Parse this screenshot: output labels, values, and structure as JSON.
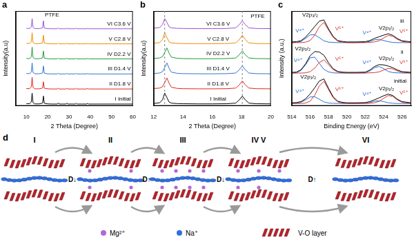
{
  "chart_data": [
    {
      "panel": "a",
      "type": "line",
      "x_label": "2 Theta (Degree)",
      "y_label": "Intensity(a.u)",
      "x": [
        10,
        11.5,
        12.3,
        12.7,
        13.1,
        14,
        16,
        17.6,
        18,
        18.4,
        20,
        22,
        24.6,
        25,
        25.4,
        27,
        28.6,
        29,
        29.4,
        31,
        33,
        33.4,
        33.8,
        36,
        38.4,
        38.8,
        39.2,
        42,
        45,
        50,
        55,
        60
      ],
      "xlim": [
        5,
        60
      ],
      "xticks": [
        10,
        20,
        30,
        40,
        50,
        60
      ],
      "ylim": [
        -0.1,
        6.2
      ],
      "tick_labels": "x",
      "grid": false,
      "series": [
        {
          "name": "I Initial",
          "color": "#000000",
          "values": [
            0.05,
            0.04,
            0.15,
            0.75,
            0.12,
            0.03,
            0.03,
            0.08,
            0.55,
            0.07,
            0.03,
            0.02,
            0.02,
            0.09,
            0.02,
            0.02,
            0.02,
            0.08,
            0.02,
            0.02,
            0.02,
            0.07,
            0.02,
            0.02,
            0.02,
            0.07,
            0.02,
            0.02,
            0.02,
            0.02,
            0.02,
            0.02
          ]
        },
        {
          "name": "II D1.8 V",
          "color": "#e8201c",
          "values": [
            1.05,
            1.04,
            1.16,
            1.8,
            1.13,
            1.03,
            1.03,
            1.08,
            1.5,
            1.07,
            1.03,
            1.02,
            1.02,
            1.08,
            1.02,
            1.02,
            1.02,
            1.07,
            1.02,
            1.02,
            1.02,
            1.06,
            1.02,
            1.02,
            1.02,
            1.06,
            1.02,
            1.02,
            1.02,
            1.02,
            1.02,
            1.02
          ]
        },
        {
          "name": "III D1.4 V",
          "color": "#2f74d0",
          "values": [
            2.05,
            2.04,
            2.15,
            2.75,
            2.12,
            2.03,
            2.03,
            2.08,
            2.55,
            2.07,
            2.03,
            2.02,
            2.02,
            2.08,
            2.02,
            2.02,
            2.02,
            2.07,
            2.02,
            2.02,
            2.02,
            2.06,
            2.02,
            2.02,
            2.02,
            2.06,
            2.02,
            2.02,
            2.02,
            2.02,
            2.02,
            2.02
          ]
        },
        {
          "name": "IV D2.2 V",
          "color": "#1f9a3a",
          "values": [
            3.05,
            3.04,
            3.16,
            3.8,
            3.13,
            3.03,
            3.03,
            3.08,
            3.55,
            3.07,
            3.03,
            3.02,
            3.02,
            3.08,
            3.02,
            3.02,
            3.02,
            3.07,
            3.02,
            3.02,
            3.02,
            3.06,
            3.02,
            3.02,
            3.02,
            3.06,
            3.02,
            3.02,
            3.02,
            3.02,
            3.02,
            3.02
          ]
        },
        {
          "name": "V C2.8 V",
          "color": "#f08c00",
          "values": [
            4.05,
            4.04,
            4.15,
            4.75,
            4.12,
            4.03,
            4.03,
            4.08,
            4.6,
            4.07,
            4.03,
            4.02,
            4.02,
            4.08,
            4.02,
            4.02,
            4.02,
            4.07,
            4.02,
            4.02,
            4.02,
            4.06,
            4.02,
            4.02,
            4.02,
            4.06,
            4.02,
            4.02,
            4.02,
            4.02,
            4.02,
            4.02
          ]
        },
        {
          "name": "VI C3.6 V",
          "color": "#9b4fd8",
          "values": [
            5.05,
            5.04,
            5.14,
            5.7,
            5.12,
            5.03,
            5.03,
            5.08,
            5.55,
            5.07,
            5.03,
            5.02,
            5.02,
            5.08,
            5.02,
            5.02,
            5.02,
            5.07,
            5.02,
            5.02,
            5.02,
            5.06,
            5.02,
            5.02,
            5.02,
            5.06,
            5.02,
            5.02,
            5.02,
            5.02,
            5.02,
            5.02
          ]
        }
      ],
      "annotations": [
        {
          "text": "PTFE",
          "x": 22,
          "y": 5.95
        }
      ]
    },
    {
      "panel": "b",
      "type": "line",
      "x_label": "2 Theta (Degree)",
      "y_label": "Intensity(a.u)",
      "x": [
        12,
        12.4,
        12.6,
        12.75,
        12.9,
        13.05,
        13.2,
        13.6,
        14,
        15,
        16,
        17,
        17.6,
        17.85,
        18.05,
        18.25,
        18.5,
        19,
        20
      ],
      "xlim": [
        12,
        20
      ],
      "xticks": [
        12,
        14,
        16,
        18,
        20
      ],
      "ylim": [
        -0.1,
        6.2
      ],
      "tick_labels": "x",
      "grid": false,
      "series": [
        {
          "name": "I Initial",
          "color": "#000000",
          "values": [
            0.06,
            0.1,
            0.3,
            0.75,
            0.45,
            0.15,
            0.08,
            0.05,
            0.04,
            0.03,
            0.03,
            0.04,
            0.08,
            0.3,
            0.55,
            0.3,
            0.08,
            0.04,
            0.03
          ]
        },
        {
          "name": "II D1.8 V",
          "color": "#e8201c",
          "values": [
            1.05,
            1.08,
            1.17,
            1.45,
            1.75,
            1.4,
            1.14,
            1.06,
            1.04,
            1.03,
            1.03,
            1.04,
            1.08,
            1.3,
            1.55,
            1.3,
            1.08,
            1.04,
            1.03
          ]
        },
        {
          "name": "III D1.4 V",
          "color": "#2f74d0",
          "values": [
            2.05,
            2.08,
            2.17,
            2.45,
            2.75,
            2.4,
            2.14,
            2.06,
            2.04,
            2.03,
            2.03,
            2.04,
            2.08,
            2.3,
            2.55,
            2.3,
            2.08,
            2.04,
            2.03
          ]
        },
        {
          "name": "IV D2.2 V",
          "color": "#1f9a3a",
          "values": [
            3.05,
            3.08,
            3.17,
            3.45,
            3.75,
            3.4,
            3.14,
            3.06,
            3.04,
            3.03,
            3.03,
            3.04,
            3.08,
            3.3,
            3.55,
            3.3,
            3.08,
            3.04,
            3.03
          ]
        },
        {
          "name": "V C2.8 V",
          "color": "#f08c00",
          "values": [
            4.06,
            4.1,
            4.3,
            4.75,
            4.45,
            4.15,
            4.08,
            4.05,
            4.04,
            4.03,
            4.03,
            4.04,
            4.08,
            4.3,
            4.6,
            4.3,
            4.08,
            4.04,
            4.03
          ]
        },
        {
          "name": "VI C3.6 V",
          "color": "#9b4fd8",
          "values": [
            5.06,
            5.1,
            5.3,
            5.7,
            5.45,
            5.15,
            5.08,
            5.05,
            5.04,
            5.03,
            5.03,
            5.04,
            5.08,
            5.3,
            5.55,
            5.3,
            5.08,
            5.04,
            5.03
          ]
        }
      ],
      "reference_lines": {
        "values": [
          12.75,
          18.05
        ],
        "color": "#808080",
        "line_style": "dashed"
      },
      "annotations": [
        {
          "text": "PTFE",
          "x": 19.1,
          "y": 5.85
        }
      ]
    },
    {
      "panel": "c",
      "type": "line",
      "x_label": "Binding Energy (eV)",
      "y_label": "Intensity (a.u.)",
      "x": [
        514,
        514.5,
        515,
        515.5,
        516,
        516.5,
        517,
        517.5,
        518,
        518.5,
        519,
        519.5,
        520,
        521,
        522,
        522.5,
        523,
        523.5,
        524,
        524.5,
        525,
        525.5,
        526,
        527
      ],
      "xlim": [
        514,
        527
      ],
      "xticks": [
        514,
        516,
        518,
        520,
        522,
        524,
        526
      ],
      "ylim": [
        -0.1,
        3.95
      ],
      "tick_labels": "x",
      "grid": false,
      "series": [
        {
          "color": "#000000",
          "values": [
            0.03,
            0.04,
            0.08,
            0.2,
            0.41,
            0.67,
            0.96,
            1.05,
            0.65,
            0.29,
            0.1,
            0.05,
            0.03,
            0.03,
            0.04,
            0.08,
            0.16,
            0.24,
            0.33,
            0.4,
            0.34,
            0.18,
            0.08,
            0.03
          ]
        },
        {
          "color": "#d9382e",
          "values": [
            0,
            0,
            0,
            0.02,
            0.1,
            0.35,
            0.75,
            0.95,
            0.6,
            0.25,
            0.07,
            0.02,
            0,
            0,
            0,
            0.01,
            0.03,
            0.09,
            0.22,
            0.34,
            0.3,
            0.15,
            0.05,
            0
          ]
        },
        {
          "color": "#2a6fd6",
          "values": [
            0,
            0.01,
            0.05,
            0.15,
            0.28,
            0.29,
            0.18,
            0.07,
            0.02,
            0.01,
            0,
            0,
            0,
            0,
            0.01,
            0.04,
            0.1,
            0.12,
            0.08,
            0.03,
            0.01,
            0,
            0,
            0
          ]
        },
        {
          "color": "#000000",
          "values": [
            1.33,
            1.34,
            1.44,
            1.69,
            2.04,
            2.22,
            2.2,
            2.06,
            1.74,
            1.49,
            1.37,
            1.34,
            1.33,
            1.33,
            1.34,
            1.43,
            1.58,
            1.66,
            1.65,
            1.6,
            1.53,
            1.43,
            1.36,
            1.33
          ]
        },
        {
          "color": "#d9382e",
          "values": [
            1.3,
            1.3,
            1.3,
            1.31,
            1.36,
            1.51,
            1.75,
            1.87,
            1.66,
            1.45,
            1.34,
            1.31,
            1.3,
            1.3,
            1.3,
            1.31,
            1.32,
            1.35,
            1.43,
            1.5,
            1.48,
            1.39,
            1.33,
            1.3
          ]
        },
        {
          "color": "#2a6fd6",
          "values": [
            1.3,
            1.31,
            1.41,
            1.65,
            1.95,
            1.98,
            1.72,
            1.46,
            1.35,
            1.31,
            1.3,
            1.3,
            1.3,
            1.3,
            1.31,
            1.39,
            1.53,
            1.58,
            1.49,
            1.37,
            1.32,
            1.31,
            1.3,
            1.3
          ]
        },
        {
          "color": "#000000",
          "values": [
            2.63,
            2.64,
            2.68,
            2.83,
            3.05,
            3.29,
            3.52,
            3.57,
            3.19,
            2.87,
            2.69,
            2.65,
            2.63,
            2.63,
            2.64,
            2.69,
            2.78,
            2.85,
            2.92,
            2.98,
            2.91,
            2.77,
            2.68,
            2.63
          ]
        },
        {
          "color": "#d9382e",
          "values": [
            2.6,
            2.6,
            2.6,
            2.62,
            2.69,
            2.92,
            3.28,
            3.46,
            3.14,
            2.83,
            2.66,
            2.62,
            2.6,
            2.6,
            2.6,
            2.61,
            2.63,
            2.68,
            2.8,
            2.91,
            2.87,
            2.74,
            2.65,
            2.6
          ]
        },
        {
          "color": "#2a6fd6",
          "values": [
            2.6,
            2.61,
            2.65,
            2.78,
            2.93,
            2.94,
            2.81,
            2.68,
            2.62,
            2.61,
            2.6,
            2.6,
            2.6,
            2.6,
            2.61,
            2.65,
            2.72,
            2.74,
            2.69,
            2.64,
            2.61,
            2.6,
            2.6,
            2.6
          ]
        }
      ],
      "annotations": [
        {
          "text": "V2p₃/₂",
          "x": 515.8,
          "y": 1.12,
          "color": "#000000"
        },
        {
          "text": "V⁴⁺",
          "x": 514.9,
          "y": 0.5,
          "color": "#2a6fd6"
        },
        {
          "text": "V⁵⁺",
          "x": 519.2,
          "y": 0.6,
          "color": "#d9382e"
        },
        {
          "text": "V⁴⁺",
          "x": 522.2,
          "y": 0.4,
          "color": "#2a6fd6"
        },
        {
          "text": "V2p₁/₂",
          "x": 524.3,
          "y": 0.62,
          "color": "#000000"
        },
        {
          "text": "V⁵⁺",
          "x": 526.2,
          "y": 0.45,
          "color": "#d9382e"
        },
        {
          "text": "initial",
          "x": 525.8,
          "y": 0.95,
          "color": "#000000"
        },
        {
          "text": "V2p₃/₂",
          "x": 515.2,
          "y": 2.35,
          "color": "#000000"
        },
        {
          "text": "V⁴⁺",
          "x": 514.7,
          "y": 1.85,
          "color": "#2a6fd6"
        },
        {
          "text": "V⁵⁺",
          "x": 519.2,
          "y": 1.9,
          "color": "#d9382e"
        },
        {
          "text": "V⁴⁺",
          "x": 522.2,
          "y": 1.75,
          "color": "#2a6fd6"
        },
        {
          "text": "V2p₁/₂",
          "x": 524.3,
          "y": 1.92,
          "color": "#000000"
        },
        {
          "text": "V⁵⁺",
          "x": 526.2,
          "y": 1.75,
          "color": "#d9382e"
        },
        {
          "text": "ii",
          "x": 526,
          "y": 2.2,
          "color": "#000000"
        },
        {
          "text": "V2p₃/₂",
          "x": 516.0,
          "y": 3.78,
          "color": "#000000"
        },
        {
          "text": "V⁴⁺",
          "x": 514.9,
          "y": 3.1,
          "color": "#2a6fd6"
        },
        {
          "text": "V⁵⁺",
          "x": 519.2,
          "y": 3.2,
          "color": "#d9382e"
        },
        {
          "text": "V⁴⁺",
          "x": 522.2,
          "y": 3.0,
          "color": "#2a6fd6"
        },
        {
          "text": "V2p₁/₂",
          "x": 524.3,
          "y": 3.22,
          "color": "#000000"
        },
        {
          "text": "V⁵⁺",
          "x": 526.2,
          "y": 3.07,
          "color": "#d9382e"
        },
        {
          "text": "iii",
          "x": 526,
          "y": 3.5,
          "color": "#000000"
        }
      ]
    }
  ],
  "diagram": {
    "panel": "d",
    "stages": [
      {
        "label": "I",
        "mg_ions": 0
      },
      {
        "label": "II",
        "mg_ions": 4
      },
      {
        "label": "III",
        "mg_ions": 8
      },
      {
        "label": "IV V",
        "mg_ions": 5
      },
      {
        "label": "VI",
        "mg_ions": 0
      }
    ],
    "transitions": [
      "D↓",
      "D↑",
      "D↓",
      "D↑"
    ],
    "legend": [
      {
        "label": "Mg²⁺",
        "color": "#b466d8",
        "marker": "circle"
      },
      {
        "label": "Na⁺",
        "color": "#2f6fe0",
        "marker": "circle"
      },
      {
        "label": "V-O layer",
        "color": "#b8232a",
        "marker": "layer"
      }
    ]
  }
}
